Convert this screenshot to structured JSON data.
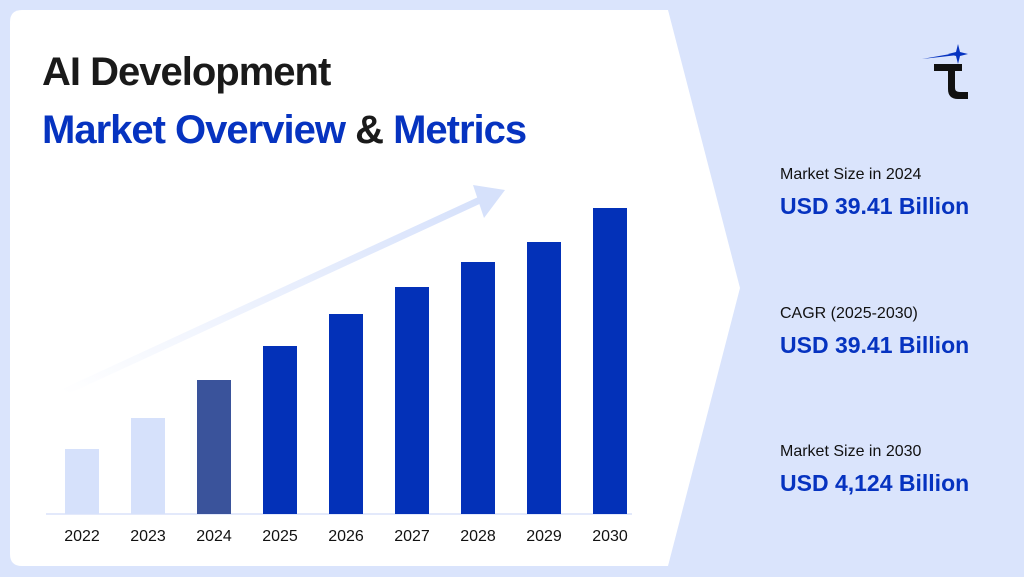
{
  "title": {
    "line1": "AI Development",
    "line2_part1": "Market Overview",
    "line2_amp": "&",
    "line2_part2": "Metrics"
  },
  "metrics": [
    {
      "label": "Market Size in 2024",
      "value": "USD 39.41 Billion"
    },
    {
      "label": "CAGR (2025-2030)",
      "value": "USD 39.41 Billion"
    },
    {
      "label": "Market Size in 2030",
      "value": "USD 4,124 Billion"
    }
  ],
  "logo": {
    "icon": "t-star-logo",
    "accent": "#0633c0"
  },
  "colors": {
    "background": "#dae4fc",
    "bar_past": "#d6e1fb",
    "bar_current": "#3a539b",
    "bar_forecast": "#0331b8",
    "trend_arrow": "#d6e1fb"
  },
  "chart_data": {
    "type": "bar",
    "title": "",
    "xlabel": "",
    "ylabel": "",
    "categories": [
      "2022",
      "2023",
      "2024",
      "2025",
      "2026",
      "2027",
      "2028",
      "2029",
      "2030"
    ],
    "values": [
      65,
      96,
      134,
      168,
      200,
      227,
      252,
      272,
      306
    ],
    "value_units": "relative bar height (no axis printed)",
    "bar_kind": [
      "past",
      "past",
      "current",
      "forecast",
      "forecast",
      "forecast",
      "forecast",
      "forecast",
      "forecast"
    ],
    "grid": false,
    "legend": "none",
    "trend_arrow": true
  }
}
